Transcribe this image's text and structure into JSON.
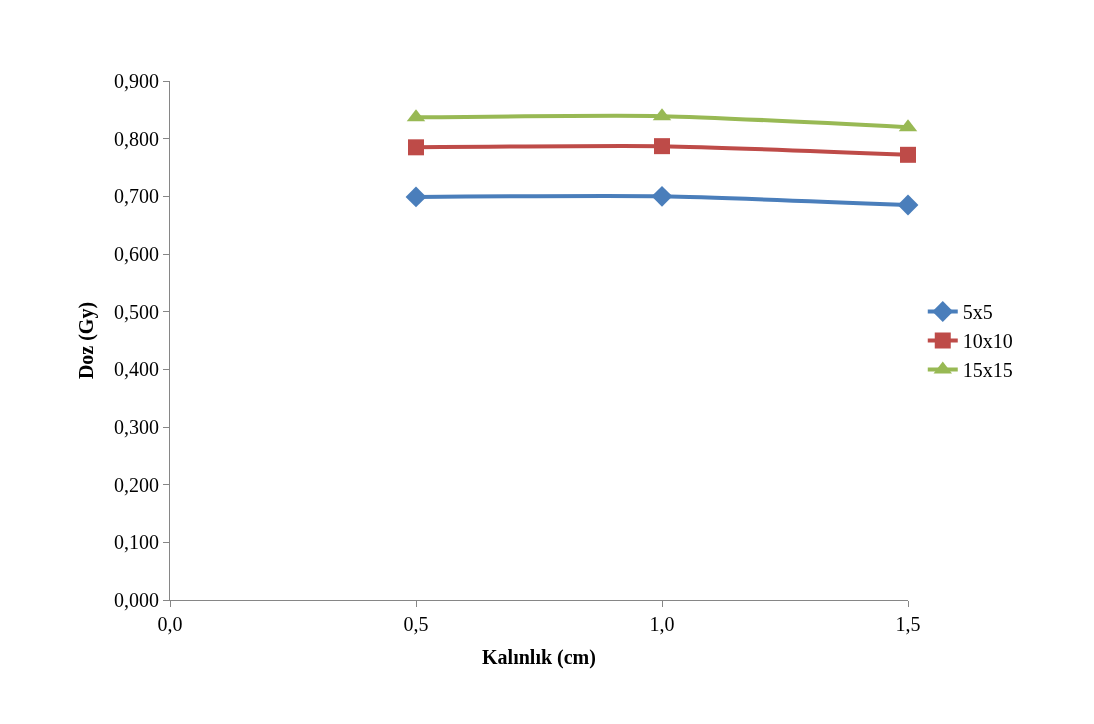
{
  "chart_data": {
    "type": "line",
    "xlabel": "Kalınlık (cm)",
    "ylabel": "Doz (Gy)",
    "x": [
      0.5,
      1.0,
      1.5
    ],
    "series": [
      {
        "name": "5x5",
        "color": "#4a7ebb",
        "marker": "diamond",
        "values": [
          0.699,
          0.7,
          0.685
        ]
      },
      {
        "name": "10x10",
        "color": "#be4b48",
        "marker": "square",
        "values": [
          0.785,
          0.787,
          0.772
        ]
      },
      {
        "name": "15x15",
        "color": "#98b954",
        "marker": "triangle",
        "values": [
          0.837,
          0.839,
          0.82
        ]
      }
    ],
    "xlim": [
      0,
      1.5
    ],
    "xticks": [
      {
        "value": 0,
        "label": "0,0"
      },
      {
        "value": 0.5,
        "label": "0,5"
      },
      {
        "value": 1.0,
        "label": "1,0"
      },
      {
        "value": 1.5,
        "label": "1,5"
      }
    ],
    "ylim": [
      0,
      0.9
    ],
    "yticks": [
      {
        "value": 0,
        "label": "0,000"
      },
      {
        "value": 0.1,
        "label": "0,100"
      },
      {
        "value": 0.2,
        "label": "0,200"
      },
      {
        "value": 0.3,
        "label": "0,300"
      },
      {
        "value": 0.4,
        "label": "0,400"
      },
      {
        "value": 0.5,
        "label": "0,500"
      },
      {
        "value": 0.6,
        "label": "0,600"
      },
      {
        "value": 0.7,
        "label": "0,700"
      },
      {
        "value": 0.8,
        "label": "0,800"
      },
      {
        "value": 0.9,
        "label": "0,900"
      }
    ],
    "legend": "right",
    "line_style": "solid"
  }
}
